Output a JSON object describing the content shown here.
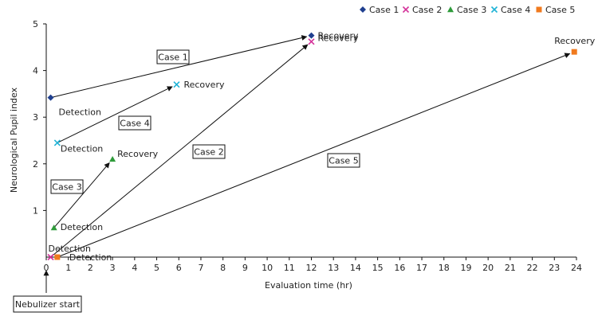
{
  "chart_data": {
    "type": "scatter",
    "xlabel": "Evaluation time (hr)",
    "ylabel": "Neurological Pupil index",
    "xlim": [
      0,
      24
    ],
    "ylim": [
      0,
      5
    ],
    "xticks": [
      "0",
      "1",
      "2",
      "3",
      "4",
      "5",
      "6",
      "7",
      "8",
      "9",
      "10",
      "11",
      "12",
      "13",
      "14",
      "15",
      "16",
      "17",
      "18",
      "19",
      "20",
      "21",
      "22",
      "23",
      "24"
    ],
    "yticks": [
      "1",
      "2",
      "3",
      "4",
      "5"
    ],
    "grid": false,
    "legend_position": "top-right",
    "series": [
      {
        "name": "Case 1",
        "color": "#1f3f8f",
        "marker": "diamond",
        "x": [
          0.2,
          12
        ],
        "y": [
          3.42,
          4.75
        ],
        "labels": [
          "Detection",
          "Recovery"
        ],
        "case_label": "Case 1"
      },
      {
        "name": "Case 2",
        "color": "#d4329a",
        "marker": "x",
        "x": [
          0.2,
          12
        ],
        "y": [
          0.0,
          4.62
        ],
        "labels": [
          "Detection",
          "Recovery"
        ],
        "case_label": "Case 2"
      },
      {
        "name": "Case 3",
        "color": "#2e9b3a",
        "marker": "triangle",
        "x": [
          0.35,
          3.0
        ],
        "y": [
          0.63,
          2.1
        ],
        "labels": [
          "Detection",
          "Recovery"
        ],
        "case_label": "Case 3"
      },
      {
        "name": "Case 4",
        "color": "#1fb3d6",
        "marker": "x",
        "x": [
          0.5,
          5.9
        ],
        "y": [
          2.45,
          3.7
        ],
        "labels": [
          "Detection",
          "Recovery"
        ],
        "case_label": "Case 4"
      },
      {
        "name": "Case 5",
        "color": "#f07a1e",
        "marker": "square",
        "x": [
          0.5,
          23.9
        ],
        "y": [
          0.0,
          4.4
        ],
        "labels": [
          "Detection",
          "Recovery"
        ],
        "case_label": "Case 5"
      }
    ],
    "annotation": "Nebulizer start"
  }
}
